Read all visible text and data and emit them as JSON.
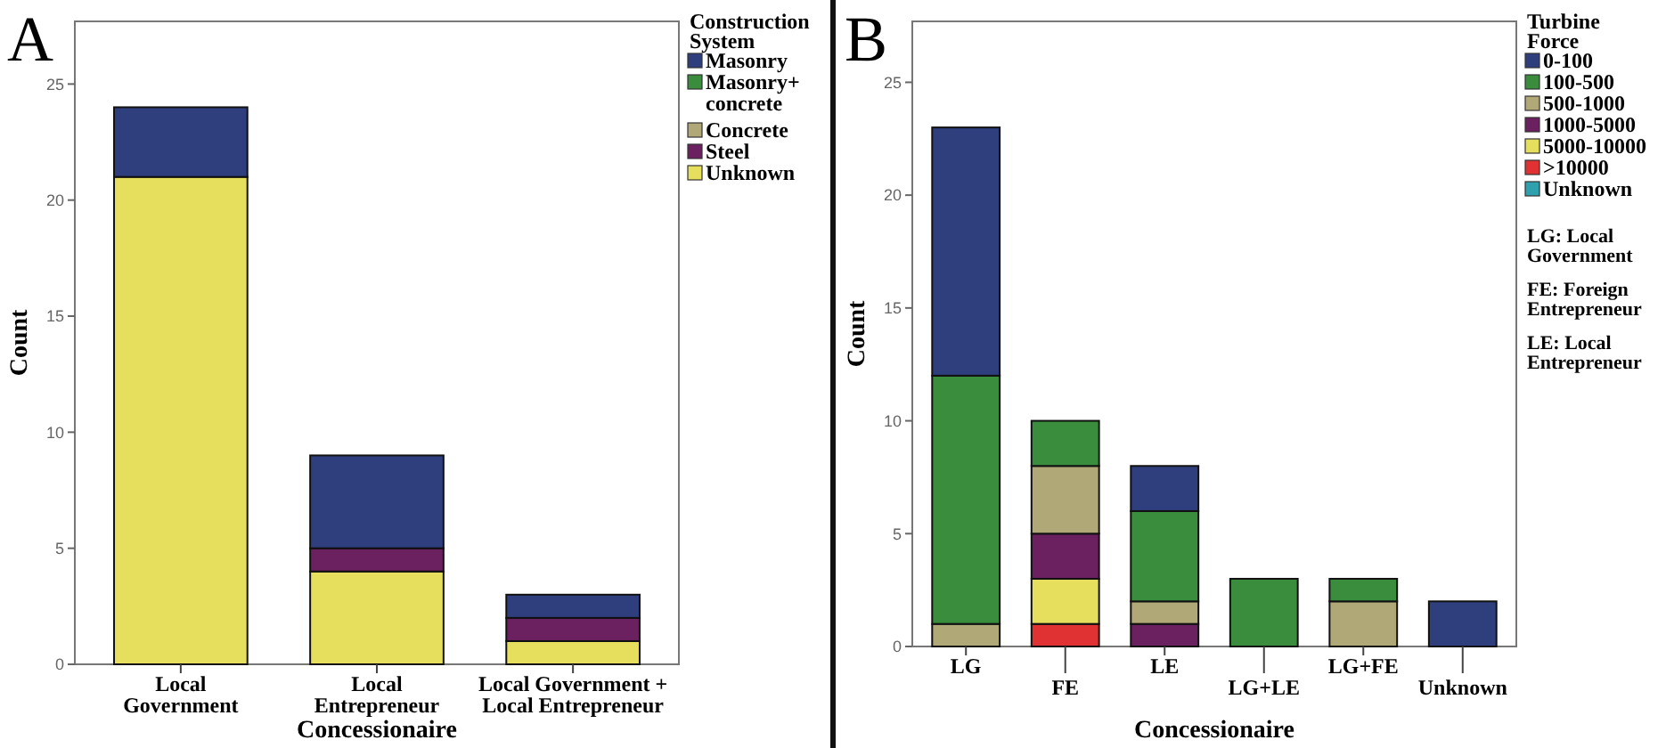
{
  "chart_data": [
    {
      "type": "bar",
      "title": "A",
      "xlabel": "Concessionaire",
      "ylabel": "Count",
      "legend_title": "Construction System",
      "legend": "right",
      "stacked": true,
      "grid": false,
      "categories": [
        "Local Government",
        "Local Entrepreneur",
        "Local Government + Local Entrepreneur"
      ],
      "ylim": [
        0,
        27.7
      ],
      "yticks": [
        0,
        5,
        10,
        15,
        20,
        25
      ],
      "series": [
        {
          "name": "Unknown",
          "color": "#e6df5e",
          "values": [
            21,
            4,
            1
          ]
        },
        {
          "name": "Steel",
          "color": "#6b2160",
          "values": [
            0,
            1,
            1
          ]
        },
        {
          "name": "Concrete",
          "color": "#b1a878",
          "values": [
            0,
            0,
            0
          ]
        },
        {
          "name": "Masonry+ concrete",
          "color": "#3a8d3c",
          "values": [
            0,
            0,
            0
          ]
        },
        {
          "name": "Masonry",
          "color": "#2f3f7e",
          "values": [
            3,
            4,
            1
          ]
        }
      ]
    },
    {
      "type": "bar",
      "title": "B",
      "xlabel": "Concessionaire",
      "ylabel": "Count",
      "legend_title": "Turbine Force",
      "legend": "right",
      "stacked": true,
      "grid": false,
      "categories": [
        "LG",
        "FE",
        "LE",
        "LG+LE",
        "LG+FE",
        "Unknown"
      ],
      "ylim": [
        0,
        27.7
      ],
      "yticks": [
        0,
        5,
        10,
        15,
        20,
        25
      ],
      "annotations": [
        "LG: Local Government",
        "FE: Foreign Entrepreneur",
        "LE: Local Entrepreneur"
      ],
      "series": [
        {
          "name": "Unknown",
          "color": "#2fa0ad",
          "values": [
            0,
            0,
            0,
            0,
            0,
            0
          ]
        },
        {
          "name": ">10000",
          "color": "#e03232",
          "values": [
            0,
            1,
            0,
            0,
            0,
            0
          ]
        },
        {
          "name": "5000-10000",
          "color": "#e6df5e",
          "values": [
            0,
            2,
            0,
            0,
            0,
            0
          ]
        },
        {
          "name": "1000-5000",
          "color": "#6b2160",
          "values": [
            0,
            2,
            1,
            0,
            0,
            0
          ]
        },
        {
          "name": "500-1000",
          "color": "#b1a878",
          "values": [
            1,
            3,
            1,
            0,
            2,
            0
          ]
        },
        {
          "name": "100-500",
          "color": "#3a8d3c",
          "values": [
            11,
            2,
            4,
            3,
            1,
            0
          ]
        },
        {
          "name": "0-100",
          "color": "#2f3f7e",
          "values": [
            11,
            0,
            2,
            0,
            0,
            2
          ]
        }
      ]
    }
  ]
}
